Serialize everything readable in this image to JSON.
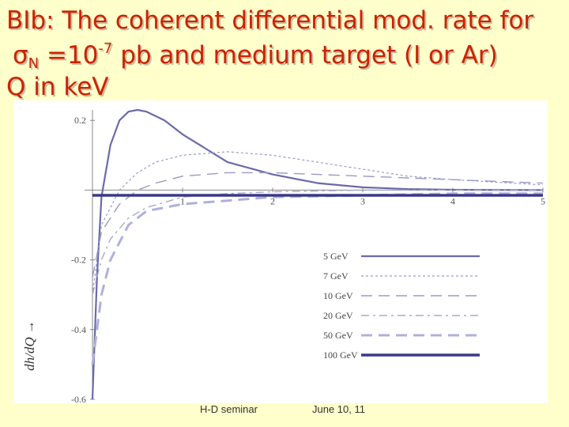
{
  "slide": {
    "title_line1": "BIb: The coherent differential mod. rate for",
    "title_line2_symbol": "σ",
    "title_line2_sub": "N",
    "title_line2_eq": " =10",
    "title_line2_sup": "-7",
    "title_line2_rest": " pb and medium target (I or Ar)",
    "title_line3": "Q in keV",
    "footer_left": "H-D seminar",
    "footer_right": "June 10, 11"
  },
  "chart_data": {
    "type": "line",
    "ylabel": "dh/dQ →",
    "xlim": [
      0,
      5
    ],
    "ylim": [
      -0.6,
      0.23
    ],
    "x_ticks": [
      "1",
      "2",
      "3",
      "4",
      "5"
    ],
    "y_ticks": [
      "0.2",
      "-0.2",
      "-0.4",
      "-0.6"
    ],
    "legend_position": "bottom-right",
    "series": [
      {
        "name": "5 GeV",
        "style": "solid",
        "color": "#6a6aaa",
        "x": [
          0.0,
          0.05,
          0.1,
          0.2,
          0.3,
          0.4,
          0.5,
          0.6,
          0.8,
          1.0,
          1.25,
          1.5,
          2.0,
          2.5,
          3.0,
          3.5,
          4.0,
          5.0
        ],
        "y": [
          -0.6,
          -0.25,
          -0.02,
          0.13,
          0.2,
          0.225,
          0.23,
          0.225,
          0.2,
          0.16,
          0.12,
          0.08,
          0.045,
          0.02,
          0.008,
          0.003,
          0.001,
          0.0
        ]
      },
      {
        "name": "7 GeV",
        "style": "dashed",
        "color": "#9999c8",
        "x": [
          0.0,
          0.1,
          0.3,
          0.5,
          0.7,
          1.0,
          1.5,
          2.0,
          2.5,
          3.0,
          3.5,
          4.0,
          5.0
        ],
        "y": [
          -0.3,
          -0.1,
          0.0,
          0.05,
          0.08,
          0.1,
          0.11,
          0.1,
          0.08,
          0.06,
          0.04,
          0.03,
          0.015
        ]
      },
      {
        "name": "10 GeV",
        "style": "longdash",
        "color": "#9a9ac4",
        "x": [
          0.0,
          0.1,
          0.3,
          0.5,
          0.7,
          1.0,
          1.5,
          2.0,
          2.5,
          3.0,
          3.5,
          4.0,
          5.0
        ],
        "y": [
          -0.25,
          -0.12,
          -0.04,
          0.0,
          0.02,
          0.04,
          0.05,
          0.05,
          0.045,
          0.04,
          0.035,
          0.03,
          0.02
        ]
      },
      {
        "name": "20 GeV",
        "style": "dashdot",
        "color": "#a8a8cc",
        "x": [
          0.0,
          0.1,
          0.2,
          0.4,
          0.6,
          1.0,
          1.5,
          2.0,
          3.0,
          4.0,
          5.0
        ],
        "y": [
          -0.3,
          -0.2,
          -0.14,
          -0.08,
          -0.05,
          -0.02,
          -0.01,
          -0.005,
          0.0,
          0.0,
          0.0
        ]
      },
      {
        "name": "50 GeV",
        "style": "thickdash",
        "color": "#b0b0dc",
        "x": [
          0.0,
          0.1,
          0.2,
          0.4,
          0.6,
          1.0,
          1.5,
          2.0,
          3.0,
          4.0,
          5.0
        ],
        "y": [
          -0.5,
          -0.3,
          -0.2,
          -0.1,
          -0.06,
          -0.04,
          -0.03,
          -0.02,
          -0.015,
          -0.01,
          -0.01
        ]
      },
      {
        "name": "100 GeV",
        "style": "thick",
        "color": "#3a3a88",
        "x": [
          0.0,
          0.5,
          1.0,
          2.0,
          3.0,
          4.0,
          5.0
        ],
        "y": [
          -0.015,
          -0.015,
          -0.015,
          -0.015,
          -0.015,
          -0.015,
          -0.015
        ]
      }
    ]
  }
}
